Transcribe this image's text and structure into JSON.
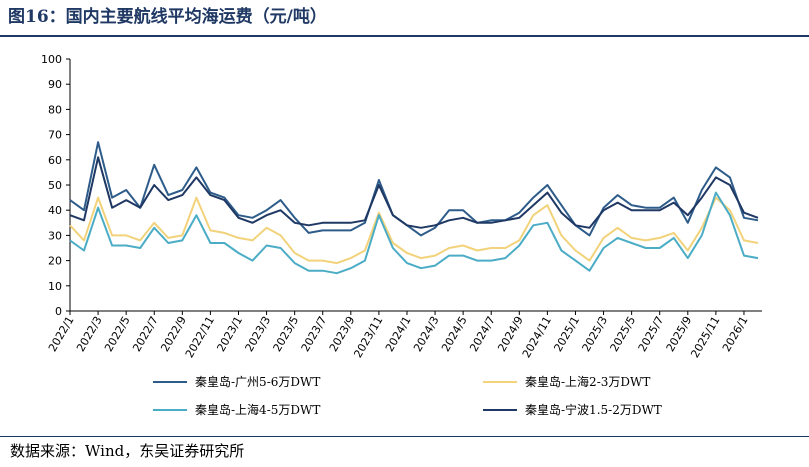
{
  "figure": {
    "title": "图16：国内主要航线平均海运费（元/吨）",
    "source": "数据来源：Wind，东吴证券研究所"
  },
  "chart_data": {
    "type": "line",
    "title": "",
    "xlabel": "",
    "ylabel": "",
    "ylim": [
      0,
      100
    ],
    "yticks": [
      0,
      10,
      20,
      30,
      40,
      50,
      60,
      70,
      80,
      90,
      100
    ],
    "x": [
      "2022/1",
      "2022/2",
      "2022/3",
      "2022/4",
      "2022/5",
      "2022/6",
      "2022/7",
      "2022/8",
      "2022/9",
      "2022/10",
      "2022/11",
      "2022/12",
      "2023/1",
      "2023/2",
      "2023/3",
      "2023/4",
      "2023/5",
      "2023/6",
      "2023/7",
      "2023/8",
      "2023/9",
      "2023/10",
      "2023/11",
      "2023/12",
      "2024/1",
      "2024/2",
      "2024/3",
      "2024/4",
      "2024/5",
      "2024/6",
      "2024/7",
      "2024/8",
      "2024/9",
      "2024/10",
      "2024/11",
      "2024/12",
      "2025/1",
      "2025/2",
      "2025/3",
      "2025/4",
      "2025/5",
      "2025/6",
      "2025/7",
      "2025/8",
      "2025/9",
      "2025/10",
      "2025/11",
      "2025/12",
      "2026/1",
      "2026/2"
    ],
    "xticks": [
      "2022/1",
      "2022/3",
      "2022/5",
      "2022/7",
      "2022/9",
      "2022/11",
      "2023/1",
      "2023/3",
      "2023/5",
      "2023/7",
      "2023/9",
      "2023/11",
      "2024/1",
      "2024/3",
      "2024/5",
      "2024/7",
      "2024/9",
      "2024/11",
      "2025/1",
      "2025/3",
      "2025/5",
      "2025/7",
      "2025/9",
      "2025/11",
      "2026/1"
    ],
    "grid": false,
    "legend_position": "bottom",
    "series": [
      {
        "name": "秦皇岛-广州5-6万DWT",
        "color": "#2e5c8a",
        "values": [
          44,
          40,
          67,
          45,
          48,
          41,
          58,
          46,
          48,
          57,
          47,
          45,
          38,
          37,
          40,
          44,
          37,
          31,
          32,
          32,
          32,
          35,
          52,
          38,
          34,
          30,
          33,
          40,
          40,
          35,
          36,
          36,
          39,
          45,
          50,
          42,
          34,
          30,
          41,
          46,
          42,
          41,
          41,
          45,
          35,
          48,
          57,
          53,
          37,
          36
        ]
      },
      {
        "name": "秦皇岛-上海2-3万DWT",
        "color": "#f2d27a",
        "values": [
          34,
          28,
          45,
          30,
          30,
          28,
          35,
          29,
          30,
          45,
          32,
          31,
          29,
          28,
          33,
          30,
          23,
          20,
          20,
          19,
          21,
          24,
          39,
          27,
          23,
          21,
          22,
          25,
          26,
          24,
          25,
          25,
          28,
          38,
          42,
          30,
          24,
          20,
          29,
          33,
          29,
          28,
          29,
          31,
          24,
          33,
          45,
          40,
          28,
          27
        ]
      },
      {
        "name": "秦皇岛-上海4-5万DWT",
        "color": "#4bacc6",
        "values": [
          28,
          24,
          41,
          26,
          26,
          25,
          33,
          27,
          28,
          38,
          27,
          27,
          23,
          20,
          26,
          25,
          19,
          16,
          16,
          15,
          17,
          20,
          38,
          25,
          19,
          17,
          18,
          22,
          22,
          20,
          20,
          21,
          26,
          34,
          35,
          24,
          20,
          16,
          25,
          29,
          27,
          25,
          25,
          29,
          21,
          30,
          47,
          38,
          22,
          21
        ]
      },
      {
        "name": "秦皇岛-宁波1.5-2万DWT",
        "color": "#1f3864",
        "values": [
          38,
          36,
          61,
          41,
          44,
          41,
          50,
          44,
          46,
          53,
          46,
          44,
          37,
          35,
          38,
          40,
          35,
          34,
          35,
          35,
          35,
          36,
          50,
          38,
          34,
          33,
          34,
          36,
          37,
          35,
          35,
          36,
          37,
          42,
          47,
          39,
          34,
          33,
          40,
          43,
          40,
          40,
          40,
          43,
          38,
          45,
          53,
          50,
          39,
          37
        ]
      }
    ]
  }
}
